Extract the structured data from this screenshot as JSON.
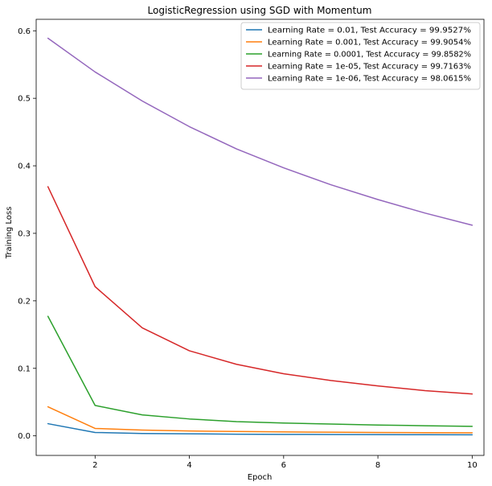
{
  "chart_data": {
    "type": "line",
    "title": "LogisticRegression using SGD with Momentum",
    "xlabel": "Epoch",
    "ylabel": "Training Loss",
    "x": [
      1,
      2,
      3,
      4,
      5,
      6,
      7,
      8,
      9,
      10
    ],
    "xlim": [
      0.75,
      10.25
    ],
    "ylim": [
      -0.029,
      0.617
    ],
    "xticks": [
      2,
      4,
      6,
      8,
      10
    ],
    "yticks": [
      0.0,
      0.1,
      0.2,
      0.3,
      0.4,
      0.5,
      0.6
    ],
    "xtick_labels": [
      "2",
      "4",
      "6",
      "8",
      "10"
    ],
    "ytick_labels": [
      "0.0",
      "0.1",
      "0.2",
      "0.3",
      "0.4",
      "0.5",
      "0.6"
    ],
    "grid": false,
    "legend_position": "top-right",
    "series": [
      {
        "name": "Learning Rate = 0.01, Test Accuracy = 99.9527%",
        "color": "#1f77b4",
        "values": [
          0.018,
          0.005,
          0.0035,
          0.003,
          0.0025,
          0.0022,
          0.002,
          0.0018,
          0.0017,
          0.0016
        ]
      },
      {
        "name": "Learning Rate = 0.001, Test Accuracy = 99.9054%",
        "color": "#ff7f0e",
        "values": [
          0.043,
          0.011,
          0.0085,
          0.0072,
          0.0064,
          0.0058,
          0.0054,
          0.005,
          0.0047,
          0.0045
        ]
      },
      {
        "name": "Learning Rate = 0.0001, Test Accuracy = 99.8582%",
        "color": "#2ca02c",
        "values": [
          0.177,
          0.045,
          0.031,
          0.025,
          0.021,
          0.019,
          0.0175,
          0.016,
          0.015,
          0.014
        ]
      },
      {
        "name": "Learning Rate = 1e-05, Test Accuracy = 99.7163%",
        "color": "#d62728",
        "values": [
          0.369,
          0.221,
          0.16,
          0.126,
          0.106,
          0.092,
          0.082,
          0.074,
          0.067,
          0.062
        ]
      },
      {
        "name": "Learning Rate = 1e-06, Test Accuracy = 98.0615%",
        "color": "#9467bd",
        "values": [
          0.589,
          0.539,
          0.496,
          0.458,
          0.425,
          0.397,
          0.372,
          0.35,
          0.33,
          0.312
        ]
      }
    ]
  }
}
